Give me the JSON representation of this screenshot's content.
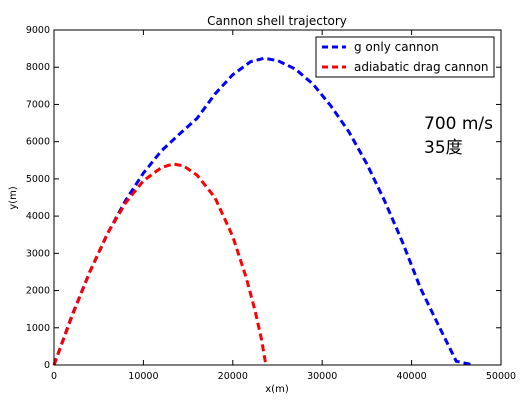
{
  "chart_data": {
    "type": "line",
    "title": "Cannon shell trajectory",
    "xlabel": "x(m)",
    "ylabel": "y(m)",
    "xlim": [
      0,
      50000
    ],
    "ylim": [
      0,
      9000
    ],
    "xticks": [
      0,
      10000,
      20000,
      30000,
      40000,
      50000
    ],
    "yticks": [
      0,
      1000,
      2000,
      3000,
      4000,
      5000,
      6000,
      7000,
      8000,
      9000
    ],
    "grid": false,
    "legend": {
      "placement": "top-right",
      "entries": [
        "g only cannon",
        "adiabatic drag cannon"
      ]
    },
    "annotations": [
      {
        "text": "700 m/s",
        "x": 41200,
        "y": 6400,
        "color": "#ff3333"
      },
      {
        "text": "35度",
        "x": 41200,
        "y": 5650,
        "color": "#ff3333"
      }
    ],
    "series": [
      {
        "name": "g only cannon",
        "color": "#0000ff",
        "style": "dashed",
        "x": [
          0,
          2000,
          4000,
          6000,
          8000,
          10000,
          12000,
          14000,
          16000,
          18000,
          20000,
          22000,
          23500,
          25000,
          27000,
          29000,
          31000,
          33000,
          35000,
          37000,
          39000,
          41000,
          43000,
          45000,
          47000
        ],
        "y": [
          0,
          1325,
          2500,
          3534,
          4418,
          5156,
          5750,
          6197,
          6626,
          7279,
          7800,
          8150,
          8240,
          8180,
          7950,
          7540,
          6950,
          6260,
          5400,
          4400,
          3290,
          2060,
          1070,
          100,
          0
        ]
      },
      {
        "name": "adiabatic drag cannon",
        "color": "#ff0000",
        "style": "dashed",
        "x": [
          0,
          2000,
          4000,
          6000,
          8000,
          10000,
          12000,
          13300,
          14500,
          16000,
          18000,
          20000,
          21500,
          22500,
          23200,
          23700
        ],
        "y": [
          0,
          1300,
          2500,
          3540,
          4350,
          4950,
          5300,
          5400,
          5350,
          5100,
          4500,
          3450,
          2350,
          1450,
          700,
          0
        ]
      }
    ]
  }
}
